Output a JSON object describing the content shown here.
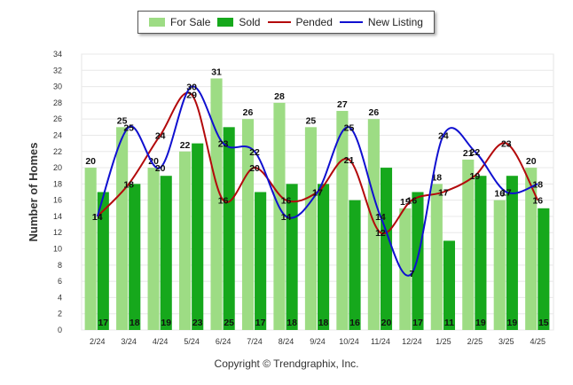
{
  "legend": {
    "items": [
      {
        "name": "For Sale",
        "color": "#9ddc84",
        "kind": "bar"
      },
      {
        "name": "Sold",
        "color": "#16a81c",
        "kind": "bar"
      },
      {
        "name": "Pended",
        "color": "#b3090b",
        "kind": "line"
      },
      {
        "name": "New Listing",
        "color": "#1010d0",
        "kind": "line"
      }
    ]
  },
  "footer": {
    "copyright": "Copyright © Trendgraphix, Inc."
  },
  "chart_data": {
    "type": "bar",
    "categories": [
      "2/24",
      "3/24",
      "4/24",
      "5/24",
      "6/24",
      "7/24",
      "8/24",
      "9/24",
      "10/24",
      "11/24",
      "12/24",
      "1/25",
      "2/25",
      "3/25",
      "4/25"
    ],
    "series": [
      {
        "name": "For Sale",
        "type": "bar",
        "color": "#9ddc84",
        "values": [
          20,
          25,
          20,
          22,
          31,
          26,
          28,
          25,
          27,
          26,
          15,
          18,
          21,
          16,
          20
        ]
      },
      {
        "name": "Sold",
        "type": "bar",
        "color": "#16a81c",
        "values": [
          17,
          18,
          19,
          23,
          25,
          17,
          18,
          18,
          16,
          20,
          17,
          11,
          19,
          19,
          15
        ]
      },
      {
        "name": "Pended",
        "type": "line",
        "color": "#b3090b",
        "values": [
          14,
          18,
          24,
          29,
          16,
          20,
          16,
          17,
          21,
          12,
          16,
          17,
          19,
          23,
          16
        ]
      },
      {
        "name": "New Listing",
        "type": "line",
        "color": "#1010d0",
        "values": [
          14,
          25,
          20,
          30,
          23,
          22,
          14,
          17,
          25,
          14,
          7,
          24,
          22,
          17,
          18
        ]
      }
    ],
    "title": "",
    "xlabel": "",
    "ylabel": "Number of Homes",
    "ylim": [
      0,
      34
    ],
    "yticks": [
      0,
      2,
      4,
      6,
      8,
      10,
      12,
      14,
      16,
      18,
      20,
      22,
      24,
      26,
      28,
      30,
      32,
      34
    ],
    "grid": true,
    "legend_position": "top-center"
  }
}
